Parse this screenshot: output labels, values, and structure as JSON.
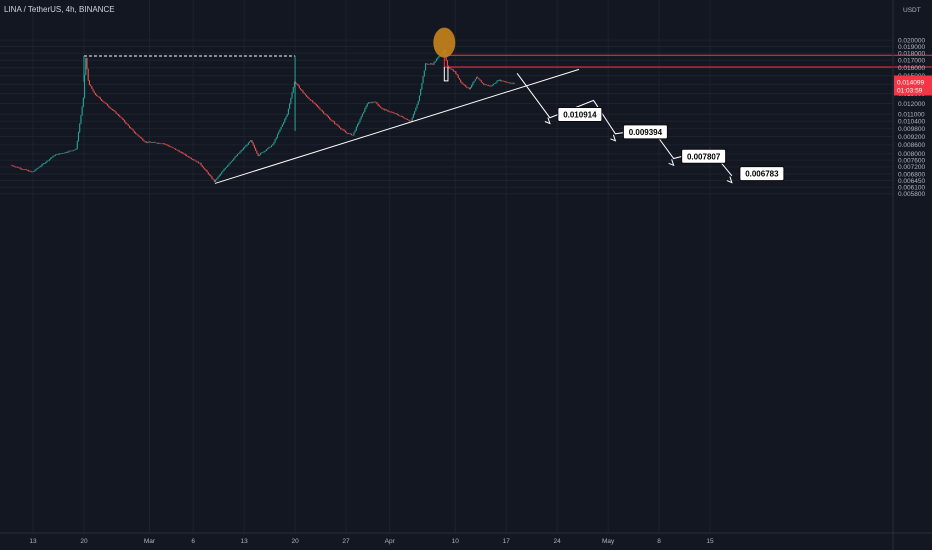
{
  "header": {
    "symbol": "LINA / TetherUS, 4h, BINANCE"
  },
  "price_scale": {
    "currency": "USDT",
    "current_price": "0.014099",
    "countdown": "01:03:59",
    "current_price_color": "#f23645"
  },
  "colors": {
    "background": "#131722",
    "up": "#26a69a",
    "down": "#ef5350",
    "line": "#ffffff",
    "resistance": "#f23645",
    "marker": "#c8841c"
  },
  "chart_data": {
    "type": "candlestick",
    "title": "",
    "xlabel": "",
    "ylabel": "",
    "y_scale": "log",
    "ylim": [
      0.0057,
      0.0222
    ],
    "y_ticks": [
      "0.020000",
      "0.019000",
      "0.018000",
      "0.017000",
      "0.016000",
      "0.015000",
      "0.014000",
      "0.013000",
      "0.012000",
      "0.011000",
      "0.010400",
      "0.009800",
      "0.009200",
      "0.008600",
      "0.008000",
      "0.007600",
      "0.007200",
      "0.006800",
      "0.006450",
      "0.006100",
      "0.005800"
    ],
    "x_ticks": [
      "13",
      "20",
      "Mar",
      "6",
      "13",
      "20",
      "27",
      "Apr",
      "10",
      "17",
      "24",
      "May",
      "8",
      "15"
    ],
    "x_ticks_day_offsets": [
      0,
      7,
      16,
      22,
      29,
      36,
      43,
      49,
      58,
      65,
      72,
      79,
      86,
      93
    ],
    "first_candle_day": -3,
    "candles_per_day": 6,
    "price_path": [
      {
        "day": -3,
        "price": 0.0073
      },
      {
        "day": 0,
        "price": 0.0069
      },
      {
        "day": 3,
        "price": 0.0079
      },
      {
        "day": 6,
        "price": 0.0083
      },
      {
        "day": 7,
        "price": 0.0125
      },
      {
        "day": 7.3,
        "price": 0.0176
      },
      {
        "day": 7.7,
        "price": 0.0142
      },
      {
        "day": 8.5,
        "price": 0.013
      },
      {
        "day": 10,
        "price": 0.012
      },
      {
        "day": 12,
        "price": 0.0108
      },
      {
        "day": 14,
        "price": 0.0095
      },
      {
        "day": 15.5,
        "price": 0.0088
      },
      {
        "day": 18,
        "price": 0.0087
      },
      {
        "day": 20,
        "price": 0.0082
      },
      {
        "day": 23,
        "price": 0.0074
      },
      {
        "day": 25,
        "price": 0.0064
      },
      {
        "day": 27,
        "price": 0.0074
      },
      {
        "day": 30,
        "price": 0.0089
      },
      {
        "day": 31,
        "price": 0.0079
      },
      {
        "day": 33,
        "price": 0.0086
      },
      {
        "day": 35,
        "price": 0.011
      },
      {
        "day": 36,
        "price": 0.0143
      },
      {
        "day": 37.5,
        "price": 0.0128
      },
      {
        "day": 39,
        "price": 0.0118
      },
      {
        "day": 41,
        "price": 0.0105
      },
      {
        "day": 43,
        "price": 0.0095
      },
      {
        "day": 44,
        "price": 0.0093
      },
      {
        "day": 46,
        "price": 0.012
      },
      {
        "day": 47,
        "price": 0.0122
      },
      {
        "day": 48,
        "price": 0.0115
      },
      {
        "day": 50,
        "price": 0.011
      },
      {
        "day": 52,
        "price": 0.0104
      },
      {
        "day": 53,
        "price": 0.0122
      },
      {
        "day": 54,
        "price": 0.0165
      },
      {
        "day": 55,
        "price": 0.0165
      },
      {
        "day": 56.5,
        "price": 0.0184
      },
      {
        "day": 57,
        "price": 0.0162
      },
      {
        "day": 58,
        "price": 0.0155
      },
      {
        "day": 59,
        "price": 0.0141
      },
      {
        "day": 60,
        "price": 0.0135
      },
      {
        "day": 61,
        "price": 0.0148
      },
      {
        "day": 62,
        "price": 0.014
      },
      {
        "day": 63,
        "price": 0.0138
      },
      {
        "day": 64,
        "price": 0.0145
      },
      {
        "day": 66,
        "price": 0.0141
      }
    ],
    "candle_jitter": 0.004,
    "dashed_level": {
      "start_day": 7,
      "end_day": 36,
      "price": 0.0176
    },
    "marker_circle": {
      "day": 56.5,
      "price": 0.0196
    },
    "resistance_box": {
      "start_day": 56.5,
      "end_day": 128,
      "upper": 0.0177,
      "lower": 0.0161
    },
    "pivot_segments": [
      {
        "day": 56.5,
        "price": 0.0161
      },
      {
        "day": 56.5,
        "price": 0.0144
      },
      {
        "day": 57,
        "price": 0.0144
      },
      {
        "day": 57,
        "price": 0.0161
      }
    ],
    "trendline": {
      "points": [
        {
          "day": 25,
          "price": 0.0063
        },
        {
          "day": 75,
          "price": 0.0158
        }
      ]
    },
    "projection_path": [
      {
        "day": 66.5,
        "price": 0.0153
      },
      {
        "day": 71,
        "price": 0.0107
      },
      {
        "day": 77,
        "price": 0.0123
      },
      {
        "day": 80,
        "price": 0.0094
      },
      {
        "day": 85,
        "price": 0.0098
      },
      {
        "day": 88,
        "price": 0.0077
      },
      {
        "day": 93,
        "price": 0.0083
      },
      {
        "day": 96,
        "price": 0.0067
      }
    ],
    "targets": [
      {
        "label": "0.010914",
        "day": 71,
        "price": 0.01098
      },
      {
        "label": "0.009394",
        "day": 80,
        "price": 0.00955
      },
      {
        "label": "0.007807",
        "day": 88,
        "price": 0.00784
      },
      {
        "label": "0.006783",
        "day": 96,
        "price": 0.00682
      }
    ]
  }
}
